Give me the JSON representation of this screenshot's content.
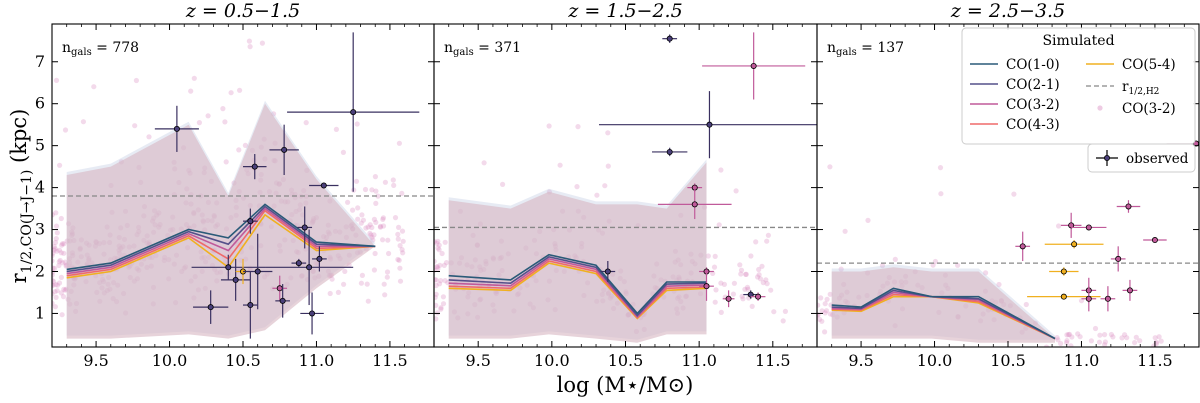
{
  "figure": {
    "xlabel": "log (M⋆/M⊙)",
    "ylabel": "r1/2,CO(J→J−1) (kpc)"
  },
  "legend": {
    "title": "Simulated",
    "observed_label": "observed",
    "rh2_label_main": "r",
    "rh2_label_sub": "1/2,H2",
    "scatter_label": "CO(3-2)"
  },
  "chart_data": [
    {
      "type": "line",
      "title": "z = 0.5−1.5",
      "ngals": "778",
      "xlim": [
        9.2,
        11.8
      ],
      "ylim": [
        0.2,
        7.9
      ],
      "xticks": [
        9.5,
        10.0,
        10.5,
        11.0,
        11.5
      ],
      "yticks": [
        1,
        2,
        3,
        4,
        5,
        6,
        7
      ],
      "rh2": 3.8,
      "x": [
        9.3,
        9.6,
        10.13,
        10.4,
        10.65,
        11.0,
        11.4
      ],
      "band_low": [
        0.4,
        0.4,
        0.5,
        0.4,
        0.6,
        1.6,
        2.6
      ],
      "band_high": [
        4.3,
        4.5,
        5.5,
        3.8,
        6.0,
        4.2,
        2.6
      ],
      "series": [
        {
          "name": "CO(1-0)",
          "color": "#2a5a78",
          "values": [
            2.05,
            2.2,
            3.0,
            2.8,
            3.6,
            2.7,
            2.6
          ]
        },
        {
          "name": "CO(2-1)",
          "color": "#55508a",
          "values": [
            2.0,
            2.15,
            2.95,
            2.65,
            3.55,
            2.65,
            2.6
          ]
        },
        {
          "name": "CO(3-2)",
          "color": "#c05a9a",
          "values": [
            1.95,
            2.1,
            2.9,
            2.5,
            3.5,
            2.6,
            2.6
          ]
        },
        {
          "name": "CO(4-3)",
          "color": "#ef6a6a",
          "values": [
            1.9,
            2.05,
            2.85,
            2.3,
            3.45,
            2.55,
            2.6
          ]
        },
        {
          "name": "CO(5-4)",
          "color": "#f0b020",
          "values": [
            1.85,
            2.0,
            2.8,
            2.1,
            3.35,
            2.5,
            2.6
          ]
        }
      ],
      "observed": [
        {
          "x": 10.05,
          "y": 5.4,
          "xerr": 0.15,
          "yerr": 0.55,
          "c": "#3a3060"
        },
        {
          "x": 10.58,
          "y": 4.5,
          "xerr": 0.08,
          "yerr": 0.3,
          "c": "#3a3060"
        },
        {
          "x": 10.78,
          "y": 4.9,
          "xerr": 0.1,
          "yerr": 0.6,
          "c": "#3a3060"
        },
        {
          "x": 11.05,
          "y": 4.05,
          "xerr": 0.1,
          "yerr": 0.0,
          "c": "#3a3060"
        },
        {
          "x": 11.25,
          "y": 5.8,
          "xerr": 0.45,
          "yerr": 1.9,
          "c": "#3a3060"
        },
        {
          "x": 10.28,
          "y": 1.15,
          "xerr": 0.12,
          "yerr": 0.4,
          "c": "#3a3060"
        },
        {
          "x": 10.4,
          "y": 2.1,
          "xerr": 0.25,
          "yerr": 0.3,
          "c": "#3a3060"
        },
        {
          "x": 10.45,
          "y": 1.8,
          "xerr": 0.1,
          "yerr": 0.5,
          "c": "#3a3060"
        },
        {
          "x": 10.5,
          "y": 2.0,
          "xerr": 0.05,
          "yerr": 0.3,
          "c": "#f0b020"
        },
        {
          "x": 10.55,
          "y": 1.2,
          "xerr": 0.05,
          "yerr": 0.8,
          "c": "#3a3060"
        },
        {
          "x": 10.6,
          "y": 2.0,
          "xerr": 0.1,
          "yerr": 0.9,
          "c": "#3a3060"
        },
        {
          "x": 10.55,
          "y": 3.2,
          "xerr": 0.05,
          "yerr": 0.3,
          "c": "#3a3060"
        },
        {
          "x": 10.75,
          "y": 1.6,
          "xerr": 0.05,
          "yerr": 0.3,
          "c": "#c05a9a"
        },
        {
          "x": 10.77,
          "y": 1.3,
          "xerr": 0.05,
          "yerr": 0.4,
          "c": "#3a3060"
        },
        {
          "x": 10.88,
          "y": 2.2,
          "xerr": 0.05,
          "yerr": 0.1,
          "c": "#3a3060"
        },
        {
          "x": 10.92,
          "y": 3.05,
          "xerr": 0.05,
          "yerr": 0.5,
          "c": "#3a3060"
        },
        {
          "x": 10.95,
          "y": 2.1,
          "xerr": 0.3,
          "yerr": 0.9,
          "c": "#3a3060"
        },
        {
          "x": 10.97,
          "y": 1.0,
          "xerr": 0.08,
          "yerr": 0.5,
          "c": "#3a3060"
        },
        {
          "x": 11.02,
          "y": 2.3,
          "xerr": 0.05,
          "yerr": 0.3,
          "c": "#3a3060"
        }
      ],
      "scatter_count": 520,
      "scatter_seed": 11
    },
    {
      "type": "line",
      "title": "z = 1.5−2.5",
      "ngals": "371",
      "xlim": [
        9.2,
        11.8
      ],
      "ylim": [
        0.2,
        7.9
      ],
      "xticks": [
        9.5,
        10.0,
        10.5,
        11.0,
        11.5
      ],
      "yticks": [
        1,
        2,
        3,
        4,
        5,
        6,
        7
      ],
      "rh2": 3.05,
      "x": [
        9.3,
        9.72,
        9.98,
        10.3,
        10.58,
        10.78,
        11.05
      ],
      "band_low": [
        0.4,
        0.4,
        0.5,
        0.4,
        0.3,
        0.5,
        0.5
      ],
      "band_high": [
        3.7,
        3.5,
        3.9,
        3.6,
        3.6,
        3.5,
        4.6
      ],
      "series": [
        {
          "name": "CO(1-0)",
          "color": "#2a5a78",
          "values": [
            1.9,
            1.8,
            2.4,
            2.15,
            1.0,
            1.75,
            1.75
          ]
        },
        {
          "name": "CO(2-1)",
          "color": "#55508a",
          "values": [
            1.8,
            1.72,
            2.35,
            2.1,
            0.95,
            1.7,
            1.72
          ]
        },
        {
          "name": "CO(3-2)",
          "color": "#c05a9a",
          "values": [
            1.72,
            1.66,
            2.3,
            2.05,
            0.92,
            1.65,
            1.68
          ]
        },
        {
          "name": "CO(4-3)",
          "color": "#ef6a6a",
          "values": [
            1.65,
            1.6,
            2.25,
            2.0,
            0.9,
            1.6,
            1.63
          ]
        },
        {
          "name": "CO(5-4)",
          "color": "#f0b020",
          "values": [
            1.6,
            1.55,
            2.2,
            1.95,
            0.88,
            1.55,
            1.6
          ]
        }
      ],
      "observed": [
        {
          "x": 10.8,
          "y": 7.55,
          "xerr": 0.05,
          "yerr": 0.1,
          "c": "#3a3060"
        },
        {
          "x": 11.37,
          "y": 6.9,
          "xerr": 0.35,
          "yerr": 0.8,
          "c": "#c05a9a"
        },
        {
          "x": 11.07,
          "y": 5.5,
          "xerr": 0.75,
          "yerr": 0.8,
          "c": "#3a3060"
        },
        {
          "x": 10.8,
          "y": 4.85,
          "xerr": 0.12,
          "yerr": 0.1,
          "c": "#3a3060"
        },
        {
          "x": 10.97,
          "y": 4.0,
          "xerr": 0.05,
          "yerr": 0.1,
          "c": "#c05a9a"
        },
        {
          "x": 10.97,
          "y": 3.6,
          "xerr": 0.25,
          "yerr": 0.35,
          "c": "#c05a9a"
        },
        {
          "x": 10.38,
          "y": 2.0,
          "xerr": 0.05,
          "yerr": 0.25,
          "c": "#3a3060"
        },
        {
          "x": 11.05,
          "y": 2.0,
          "xerr": 0.05,
          "yerr": 0.1,
          "c": "#c05a9a"
        },
        {
          "x": 11.05,
          "y": 1.65,
          "xerr": 0.05,
          "yerr": 0.35,
          "c": "#c05a9a"
        },
        {
          "x": 11.2,
          "y": 1.35,
          "xerr": 0.04,
          "yerr": 0.2,
          "c": "#c05a9a"
        },
        {
          "x": 11.35,
          "y": 1.45,
          "xerr": 0.05,
          "yerr": 0.1,
          "c": "#3a3060"
        },
        {
          "x": 11.4,
          "y": 1.4,
          "xerr": 0.05,
          "yerr": 0.1,
          "c": "#c05a9a"
        }
      ],
      "scatter_count": 260,
      "scatter_seed": 23
    },
    {
      "type": "line",
      "title": "z = 2.5−3.5",
      "ngals": "137",
      "xlim": [
        9.2,
        11.8
      ],
      "ylim": [
        0.2,
        7.9
      ],
      "xticks": [
        9.5,
        10.0,
        10.5,
        11.0,
        11.5
      ],
      "yticks": [
        1,
        2,
        3,
        4,
        5,
        6,
        7
      ],
      "rh2": 2.2,
      "x": [
        9.3,
        9.5,
        9.72,
        9.98,
        10.3,
        10.82
      ],
      "band_low": [
        0.4,
        0.4,
        0.4,
        0.4,
        0.3,
        0.3
      ],
      "band_high": [
        2.0,
        2.0,
        2.1,
        2.0,
        2.0,
        0.4
      ],
      "series": [
        {
          "name": "CO(1-0)",
          "color": "#2a5a78",
          "values": [
            1.2,
            1.15,
            1.6,
            1.4,
            1.4,
            0.4
          ]
        },
        {
          "name": "CO(2-1)",
          "color": "#55508a",
          "values": [
            1.15,
            1.12,
            1.55,
            1.4,
            1.35,
            0.4
          ]
        },
        {
          "name": "CO(3-2)",
          "color": "#c05a9a",
          "values": [
            1.12,
            1.1,
            1.5,
            1.4,
            1.32,
            0.4
          ]
        },
        {
          "name": "CO(4-3)",
          "color": "#ef6a6a",
          "values": [
            1.1,
            1.08,
            1.45,
            1.4,
            1.28,
            0.4
          ]
        },
        {
          "name": "CO(5-4)",
          "color": "#f0b020",
          "values": [
            1.08,
            1.05,
            1.4,
            1.4,
            1.25,
            0.4
          ]
        }
      ],
      "observed": [
        {
          "x": 10.6,
          "y": 2.6,
          "xerr": 0.05,
          "yerr": 0.35,
          "c": "#c05a9a"
        },
        {
          "x": 10.88,
          "y": 2.0,
          "xerr": 0.1,
          "yerr": 0.1,
          "c": "#f0b020"
        },
        {
          "x": 10.95,
          "y": 2.65,
          "xerr": 0.2,
          "yerr": 0.1,
          "c": "#f0b020"
        },
        {
          "x": 10.93,
          "y": 3.1,
          "xerr": 0.07,
          "yerr": 0.3,
          "c": "#c05a9a"
        },
        {
          "x": 11.05,
          "y": 3.05,
          "xerr": 0.12,
          "yerr": 0.05,
          "c": "#c05a9a"
        },
        {
          "x": 10.88,
          "y": 1.4,
          "xerr": 0.25,
          "yerr": 0.05,
          "c": "#f0b020"
        },
        {
          "x": 11.05,
          "y": 1.55,
          "xerr": 0.05,
          "yerr": 0.3,
          "c": "#c05a9a"
        },
        {
          "x": 11.05,
          "y": 1.35,
          "xerr": 0.05,
          "yerr": 0.3,
          "c": "#c05a9a"
        },
        {
          "x": 11.18,
          "y": 1.35,
          "xerr": 0.05,
          "yerr": 0.3,
          "c": "#c05a9a"
        },
        {
          "x": 11.25,
          "y": 2.3,
          "xerr": 0.05,
          "yerr": 0.3,
          "c": "#c05a9a"
        },
        {
          "x": 11.32,
          "y": 3.55,
          "xerr": 0.08,
          "yerr": 0.15,
          "c": "#c05a9a"
        },
        {
          "x": 11.33,
          "y": 1.55,
          "xerr": 0.05,
          "yerr": 0.25,
          "c": "#c05a9a"
        },
        {
          "x": 11.5,
          "y": 2.75,
          "xerr": 0.08,
          "yerr": 0.05,
          "c": "#c05a9a"
        },
        {
          "x": 11.78,
          "y": 5.05,
          "xerr": 0.2,
          "yerr": 0.05,
          "c": "#c05a9a"
        }
      ],
      "scatter_count": 130,
      "scatter_seed": 37
    }
  ]
}
